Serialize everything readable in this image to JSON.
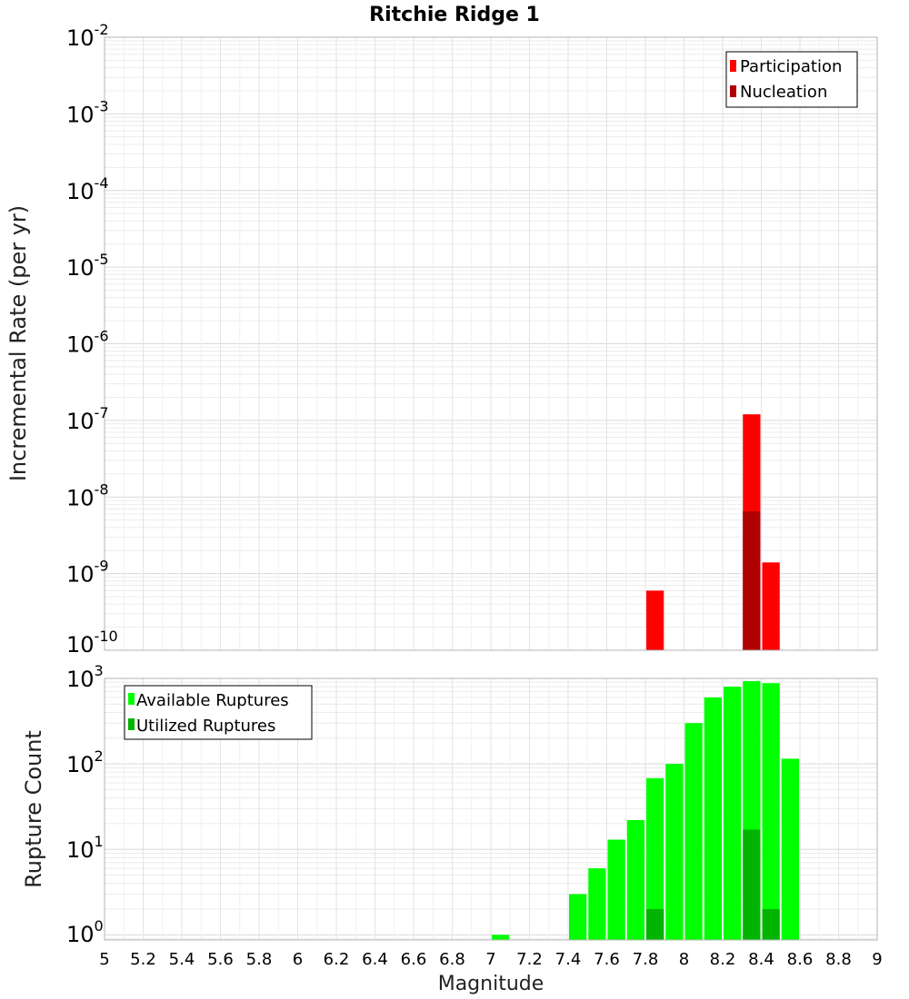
{
  "chart_data": [
    {
      "type": "bar",
      "title": "Ritchie Ridge 1",
      "ylabel": "Incremental Rate (per yr)",
      "xlabel": "",
      "y_scale": "log",
      "ylim_exp": [
        -10,
        -2
      ],
      "xlim": [
        5,
        9
      ],
      "bar_width": 0.1,
      "grid": true,
      "legend_position": "top-right",
      "y_ticks": [
        {
          "base": "10",
          "exp": "-10"
        },
        {
          "base": "10",
          "exp": "-9"
        },
        {
          "base": "10",
          "exp": "-8"
        },
        {
          "base": "10",
          "exp": "-7"
        },
        {
          "base": "10",
          "exp": "-6"
        },
        {
          "base": "10",
          "exp": "-5"
        },
        {
          "base": "10",
          "exp": "-4"
        },
        {
          "base": "10",
          "exp": "-3"
        },
        {
          "base": "10",
          "exp": "-2"
        }
      ],
      "series": [
        {
          "name": "Participation",
          "color": "#ff0000",
          "points": [
            {
              "x": 7.85,
              "y": 6e-10
            },
            {
              "x": 8.35,
              "y": 1.2e-07
            },
            {
              "x": 8.45,
              "y": 1.4e-09
            }
          ]
        },
        {
          "name": "Nucleation",
          "color": "#b00000",
          "points": [
            {
              "x": 8.35,
              "y": 6.5e-09
            }
          ]
        }
      ]
    },
    {
      "type": "bar",
      "ylabel": "Rupture Count",
      "xlabel": "Magnitude",
      "y_scale": "log",
      "ylim_exp": [
        -0.06,
        3
      ],
      "xlim": [
        5,
        9
      ],
      "bar_width": 0.1,
      "grid": true,
      "legend_position": "top-left",
      "y_ticks": [
        {
          "base": "10",
          "exp": "0"
        },
        {
          "base": "10",
          "exp": "1"
        },
        {
          "base": "10",
          "exp": "2"
        },
        {
          "base": "10",
          "exp": "3"
        }
      ],
      "x_ticks": [
        "5",
        "5.2",
        "5.4",
        "5.6",
        "5.8",
        "6",
        "6.2",
        "6.4",
        "6.6",
        "6.8",
        "7",
        "7.2",
        "7.4",
        "7.6",
        "7.8",
        "8",
        "8.2",
        "8.4",
        "8.6",
        "8.8",
        "9"
      ],
      "series": [
        {
          "name": "Available Ruptures",
          "color": "#00ff00",
          "points": [
            {
              "x": 7.05,
              "y": 1
            },
            {
              "x": 7.45,
              "y": 3
            },
            {
              "x": 7.55,
              "y": 6
            },
            {
              "x": 7.65,
              "y": 13
            },
            {
              "x": 7.75,
              "y": 22
            },
            {
              "x": 7.85,
              "y": 68
            },
            {
              "x": 7.95,
              "y": 100
            },
            {
              "x": 8.05,
              "y": 300
            },
            {
              "x": 8.15,
              "y": 600
            },
            {
              "x": 8.25,
              "y": 800
            },
            {
              "x": 8.35,
              "y": 930
            },
            {
              "x": 8.45,
              "y": 880
            },
            {
              "x": 8.55,
              "y": 115
            }
          ]
        },
        {
          "name": "Utilized Ruptures",
          "color": "#00b400",
          "points": [
            {
              "x": 7.85,
              "y": 2
            },
            {
              "x": 8.35,
              "y": 17
            },
            {
              "x": 8.45,
              "y": 2
            }
          ]
        }
      ]
    }
  ]
}
